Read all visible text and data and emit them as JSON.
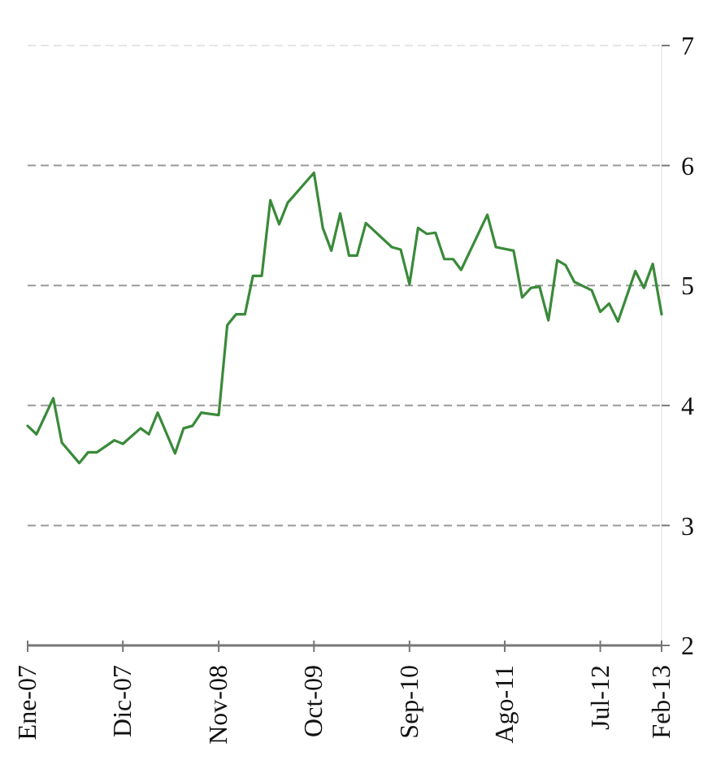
{
  "chart_data": {
    "type": "line",
    "x": [
      "2007-01",
      "2007-02",
      "2007-04",
      "2007-05",
      "2007-07",
      "2007-08",
      "2007-09",
      "2007-11",
      "2007-12",
      "2008-02",
      "2008-03",
      "2008-04",
      "2008-06",
      "2008-07",
      "2008-08",
      "2008-09",
      "2008-11",
      "2008-12",
      "2009-01",
      "2009-02",
      "2009-03",
      "2009-04",
      "2009-05",
      "2009-06",
      "2009-07",
      "2009-10",
      "2009-11",
      "2009-12",
      "2010-01",
      "2010-02",
      "2010-03",
      "2010-04",
      "2010-07",
      "2010-08",
      "2010-09",
      "2010-10",
      "2010-11",
      "2010-12",
      "2011-01",
      "2011-02",
      "2011-03",
      "2011-06",
      "2011-07",
      "2011-09",
      "2011-10",
      "2011-11",
      "2011-12",
      "2012-01",
      "2012-02",
      "2012-03",
      "2012-04",
      "2012-06",
      "2012-07",
      "2012-08",
      "2012-09",
      "2012-11",
      "2012-12",
      "2013-01",
      "2013-02"
    ],
    "series": [
      {
        "color": "#3a8a3a",
        "values": [
          3.83,
          3.76,
          4.06,
          3.69,
          3.52,
          3.61,
          3.61,
          3.71,
          3.68,
          3.81,
          3.76,
          3.94,
          3.6,
          3.81,
          3.83,
          3.94,
          3.92,
          4.67,
          4.76,
          4.76,
          5.08,
          5.08,
          5.71,
          5.51,
          5.69,
          5.94,
          5.48,
          5.29,
          5.6,
          5.25,
          5.25,
          5.52,
          5.32,
          5.3,
          5.01,
          5.48,
          5.43,
          5.44,
          5.22,
          5.22,
          5.13,
          5.59,
          5.32,
          5.29,
          4.9,
          4.98,
          4.99,
          4.71,
          5.21,
          5.17,
          5.03,
          4.96,
          4.78,
          4.85,
          4.7,
          5.12,
          4.98,
          5.18,
          4.76
        ]
      }
    ],
    "xlim": [
      "2007-01",
      "2013-02"
    ],
    "xticks": [
      {
        "value": "2007-01",
        "label": "Ene-07"
      },
      {
        "value": "2007-12",
        "label": "Dic-07"
      },
      {
        "value": "2008-11",
        "label": "Nov-08"
      },
      {
        "value": "2009-10",
        "label": "Oct-09"
      },
      {
        "value": "2010-09",
        "label": "Sep-10"
      },
      {
        "value": "2011-08",
        "label": "Ago-11"
      },
      {
        "value": "2012-07",
        "label": "Jul-12"
      },
      {
        "value": "2013-02",
        "label": "Feb-13"
      }
    ],
    "ylim": [
      2,
      7
    ],
    "yticks": [
      2,
      3,
      4,
      5,
      6,
      7
    ],
    "grid": "y",
    "marker": "none",
    "line_style": "solid"
  }
}
